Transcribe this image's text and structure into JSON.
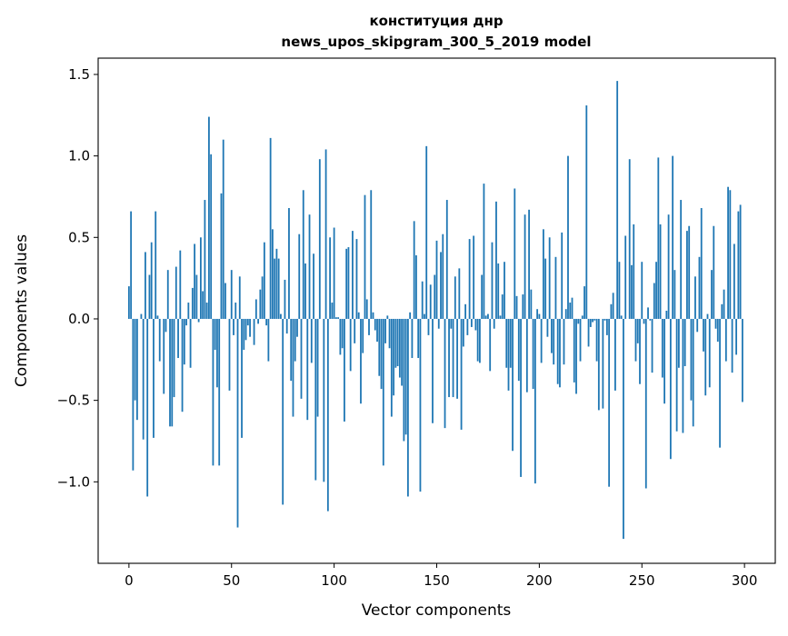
{
  "chart_data": {
    "type": "bar",
    "title": "конституция днр",
    "subtitle": "news_upos_skipgram_300_5_2019 model",
    "xlabel": "Vector components",
    "ylabel": "Components values",
    "xlim": [
      -15,
      315
    ],
    "ylim": [
      -1.5,
      1.6
    ],
    "xticks": [
      0,
      50,
      100,
      150,
      200,
      250,
      300
    ],
    "xtick_labels": [
      "0",
      "50",
      "100",
      "150",
      "200",
      "250",
      "300"
    ],
    "yticks": [
      -1.0,
      -0.5,
      0.0,
      0.5,
      1.0,
      1.5
    ],
    "ytick_labels": [
      "−1.0",
      "−0.5",
      "0.0",
      "0.5",
      "1.0",
      "1.5"
    ],
    "grid": false,
    "bar_color": "#1f77b4",
    "values": [
      0.2,
      0.66,
      -0.93,
      -0.5,
      -0.62,
      0.0,
      0.03,
      -0.74,
      0.41,
      -1.09,
      0.27,
      0.47,
      -0.73,
      0.66,
      0.02,
      -0.26,
      0.0,
      -0.46,
      -0.08,
      0.3,
      -0.66,
      -0.66,
      -0.48,
      0.32,
      -0.24,
      0.42,
      -0.57,
      -0.28,
      -0.04,
      0.1,
      -0.3,
      0.19,
      0.46,
      0.27,
      -0.02,
      0.5,
      0.17,
      0.73,
      0.1,
      1.24,
      1.01,
      -0.9,
      -0.19,
      -0.42,
      -0.9,
      0.77,
      1.1,
      0.22,
      0.0,
      -0.44,
      0.3,
      -0.1,
      0.1,
      -1.28,
      0.26,
      -0.73,
      -0.19,
      -0.13,
      -0.04,
      -0.11,
      0.0,
      -0.16,
      0.12,
      -0.03,
      0.18,
      0.26,
      0.47,
      -0.04,
      -0.26,
      1.11,
      0.55,
      0.37,
      0.43,
      0.37,
      0.03,
      -1.14,
      0.24,
      -0.09,
      0.68,
      -0.38,
      -0.6,
      -0.26,
      -0.11,
      0.52,
      -0.49,
      0.79,
      0.34,
      -0.62,
      0.64,
      -0.27,
      0.4,
      -0.99,
      -0.6,
      0.98,
      0.0,
      -1.0,
      1.04,
      -1.18,
      0.5,
      0.1,
      0.56,
      0.01,
      0.01,
      -0.22,
      -0.18,
      -0.63,
      0.43,
      0.44,
      -0.32,
      0.54,
      -0.15,
      0.49,
      0.04,
      -0.52,
      -0.21,
      0.76,
      0.12,
      -0.1,
      0.79,
      0.04,
      -0.07,
      -0.14,
      -0.35,
      -0.43,
      -0.9,
      -0.15,
      0.02,
      -0.18,
      -0.6,
      -0.47,
      -0.3,
      -0.29,
      -0.36,
      -0.41,
      -0.75,
      -0.71,
      -1.09,
      0.04,
      -0.24,
      0.6,
      0.39,
      -0.24,
      -1.06,
      0.23,
      0.03,
      1.06,
      -0.1,
      0.21,
      -0.64,
      0.27,
      0.48,
      -0.06,
      0.41,
      0.52,
      -0.67,
      0.73,
      -0.48,
      -0.06,
      -0.48,
      0.26,
      -0.49,
      0.31,
      -0.68,
      -0.17,
      0.09,
      -0.1,
      0.49,
      -0.05,
      0.51,
      -0.07,
      -0.26,
      -0.27,
      0.27,
      0.83,
      0.02,
      0.03,
      -0.32,
      0.47,
      -0.06,
      0.72,
      0.34,
      0.02,
      0.15,
      0.35,
      -0.3,
      -0.44,
      -0.3,
      -0.81,
      0.8,
      0.14,
      -0.38,
      -0.97,
      0.15,
      0.64,
      -0.45,
      0.67,
      0.18,
      -0.43,
      -1.01,
      0.06,
      0.03,
      -0.27,
      0.55,
      0.37,
      -0.11,
      0.5,
      -0.21,
      -0.28,
      0.38,
      -0.4,
      -0.42,
      0.53,
      -0.28,
      0.06,
      1.0,
      0.1,
      0.13,
      -0.39,
      -0.46,
      -0.03,
      -0.26,
      0.02,
      0.2,
      1.31,
      -0.17,
      -0.05,
      -0.02,
      -0.01,
      -0.26,
      -0.56,
      0.0,
      -0.55,
      -0.01,
      -0.1,
      -1.03,
      0.09,
      0.16,
      -0.44,
      1.46,
      0.35,
      0.02,
      -1.35,
      0.51,
      0.0,
      0.98,
      0.33,
      0.58,
      -0.26,
      -0.15,
      -0.4,
      0.35,
      -0.03,
      -1.04,
      0.07,
      -0.01,
      -0.33,
      0.22,
      0.35,
      0.99,
      0.58,
      -0.36,
      -0.52,
      0.05,
      0.64,
      -0.86,
      1.0,
      0.3,
      -0.69,
      -0.3,
      0.73,
      -0.7,
      -0.29,
      0.54,
      0.57,
      -0.5,
      -0.66,
      0.26,
      -0.08,
      0.38,
      0.68,
      -0.2,
      -0.47,
      0.03,
      -0.42,
      0.3,
      0.57,
      -0.06,
      -0.14,
      -0.79,
      0.09,
      0.18,
      -0.26,
      0.81,
      0.79,
      -0.33,
      0.46,
      -0.22,
      0.66,
      0.7,
      -0.51
    ]
  }
}
